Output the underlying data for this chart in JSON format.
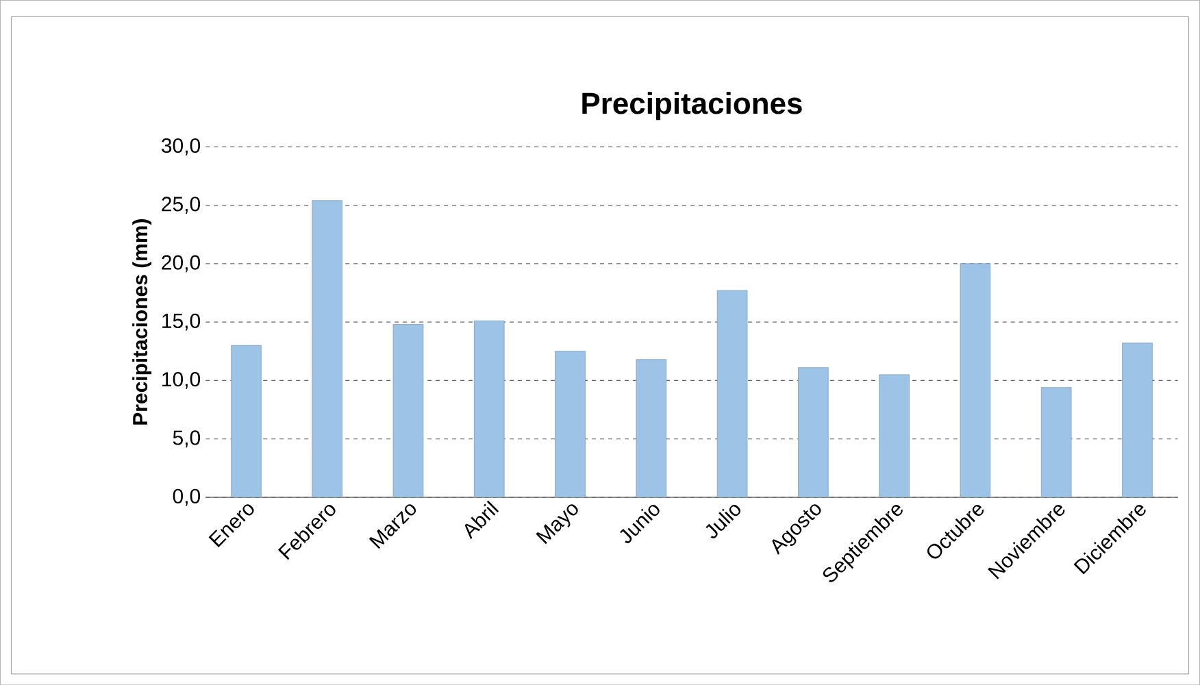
{
  "chart_data": {
    "type": "bar",
    "title": "Precipitaciones",
    "ylabel": "Precipitaciones (mm)",
    "categories": [
      "Enero",
      "Febrero",
      "Marzo",
      "Abril",
      "Mayo",
      "Junio",
      "Julio",
      "Agosto",
      "Septiembre",
      "Octubre",
      "Noviembre",
      "Diciembre"
    ],
    "values": [
      13.0,
      25.4,
      14.8,
      15.1,
      12.5,
      11.8,
      17.7,
      11.1,
      10.5,
      20.0,
      9.4,
      13.2
    ],
    "color": "#9dc3e6",
    "ylim": [
      0,
      30
    ],
    "yticks": [
      {
        "value": 0,
        "label": "0,0"
      },
      {
        "value": 5,
        "label": "5,0"
      },
      {
        "value": 10,
        "label": "10,0"
      },
      {
        "value": 15,
        "label": "15,0"
      },
      {
        "value": 20,
        "label": "20,0"
      },
      {
        "value": 25,
        "label": "25,0"
      },
      {
        "value": 30,
        "label": "30,0"
      }
    ],
    "grid": "y"
  }
}
